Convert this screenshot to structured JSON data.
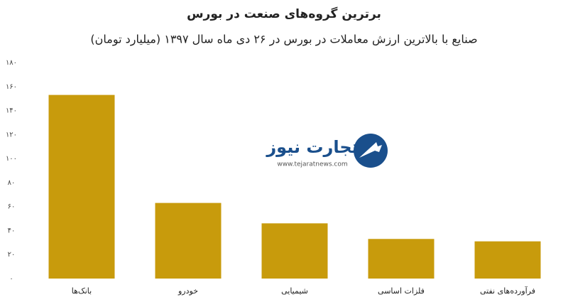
{
  "chart_data": {
    "type": "bar",
    "title": "برترین گروه‌های صنعت در بورس",
    "subtitle": "صنایع با بالاترین ارزش  معاملات در بورس در ۲۶ دی ماه سال ۱۳۹۷ (میلیارد تومان)",
    "categories": [
      "بانک‌ها",
      "خودرو",
      "شیمیایی",
      "فلزات اساسی",
      "فرآورده‌های نفتی"
    ],
    "values": [
      153,
      63,
      46,
      33,
      31
    ],
    "color": "#c89b0c",
    "ylim": [
      0,
      180
    ],
    "yticks": [
      {
        "value": 0,
        "label": "۰"
      },
      {
        "value": 20,
        "label": "۲۰"
      },
      {
        "value": 40,
        "label": "۴۰"
      },
      {
        "value": 60,
        "label": "۶۰"
      },
      {
        "value": 80,
        "label": "۸۰"
      },
      {
        "value": 100,
        "label": "۱۰۰"
      },
      {
        "value": 120,
        "label": "۱۲۰"
      },
      {
        "value": 140,
        "label": "۱۴۰"
      },
      {
        "value": 160,
        "label": "۱۶۰"
      },
      {
        "value": 180,
        "label": "۱۸۰"
      }
    ],
    "grid": false
  },
  "logo": {
    "name": "تجارت نیوز",
    "url": "www.tejaratnews.com"
  }
}
